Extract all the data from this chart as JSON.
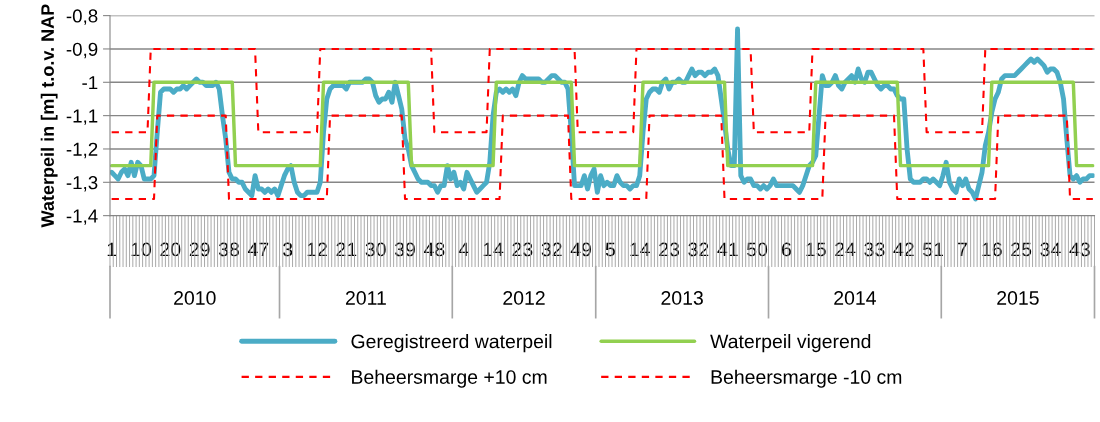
{
  "chart_data": {
    "type": "line",
    "ylabel": "Waterpeil in [m] t.o.v. NAP",
    "categories": [
      "1",
      null,
      null,
      null,
      null,
      null,
      null,
      null,
      null,
      "10",
      null,
      null,
      null,
      null,
      null,
      null,
      null,
      null,
      "20",
      null,
      null,
      null,
      null,
      null,
      null,
      null,
      null,
      "29",
      null,
      null,
      null,
      null,
      null,
      null,
      null,
      null,
      "38",
      null,
      null,
      null,
      null,
      null,
      null,
      null,
      null,
      "47",
      null,
      null,
      null,
      null,
      null,
      null,
      null,
      null,
      "3",
      null,
      null,
      null,
      null,
      null,
      null,
      null,
      null,
      "12",
      null,
      null,
      null,
      null,
      null,
      null,
      null,
      null,
      "21",
      null,
      null,
      null,
      null,
      null,
      null,
      null,
      null,
      "30",
      null,
      null,
      null,
      null,
      null,
      null,
      null,
      null,
      "39",
      null,
      null,
      null,
      null,
      null,
      null,
      null,
      null,
      "48",
      null,
      null,
      null,
      null,
      null,
      null,
      null,
      null,
      "4",
      null,
      null,
      null,
      null,
      null,
      null,
      null,
      null,
      "14",
      null,
      null,
      null,
      null,
      null,
      null,
      null,
      null,
      "23",
      null,
      null,
      null,
      null,
      null,
      null,
      null,
      null,
      "32",
      null,
      null,
      null,
      null,
      null,
      null,
      null,
      null,
      "49",
      null,
      null,
      null,
      null,
      null,
      null,
      null,
      null,
      "5",
      null,
      null,
      null,
      null,
      null,
      null,
      null,
      null,
      "14",
      null,
      null,
      null,
      null,
      null,
      null,
      null,
      null,
      "23",
      null,
      null,
      null,
      null,
      null,
      null,
      null,
      null,
      "32",
      null,
      null,
      null,
      null,
      null,
      null,
      null,
      null,
      "41",
      null,
      null,
      null,
      null,
      null,
      null,
      null,
      null,
      "50",
      null,
      null,
      null,
      null,
      null,
      null,
      null,
      null,
      "6",
      null,
      null,
      null,
      null,
      null,
      null,
      null,
      null,
      "15",
      null,
      null,
      null,
      null,
      null,
      null,
      null,
      null,
      "24",
      null,
      null,
      null,
      null,
      null,
      null,
      null,
      null,
      "33",
      null,
      null,
      null,
      null,
      null,
      null,
      null,
      null,
      "42",
      null,
      null,
      null,
      null,
      null,
      null,
      null,
      null,
      "51",
      null,
      null,
      null,
      null,
      null,
      null,
      null,
      null,
      "7",
      null,
      null,
      null,
      null,
      null,
      null,
      null,
      null,
      "16",
      null,
      null,
      null,
      null,
      null,
      null,
      null,
      null,
      "25",
      null,
      null,
      null,
      null,
      null,
      null,
      null,
      null,
      "34",
      null,
      null,
      null,
      null,
      null,
      null,
      null,
      null,
      "43",
      null,
      null,
      null,
      null
    ],
    "annotations": [
      "2010",
      "2011",
      "2012",
      "2013",
      "2014",
      "2015"
    ],
    "ylim": [
      -1.4,
      -0.8
    ],
    "yticks": [
      {
        "value": -1.4,
        "label": "-1,4"
      },
      {
        "value": -1.3,
        "label": "-1,3"
      },
      {
        "value": -1.2,
        "label": "-1,2"
      },
      {
        "value": -1.1,
        "label": "-1,1"
      },
      {
        "value": -1,
        "label": "-1"
      },
      {
        "value": -0.9,
        "label": "-0,9"
      },
      {
        "value": -0.8,
        "label": "-0,8"
      }
    ],
    "grid": "y",
    "legend": "bottom",
    "series": [
      {
        "name": "Geregistreerd waterpeil",
        "color": "#4bacc6",
        "line_style": "solid",
        "values": [
          -1.27,
          -1.28,
          -1.29,
          -1.27,
          -1.26,
          -1.28,
          -1.24,
          -1.28,
          -1.24,
          -1.25,
          -1.29,
          -1.29,
          -1.29,
          -1.28,
          -1.15,
          -1.03,
          -1.02,
          -1.02,
          -1.02,
          -1.03,
          -1.02,
          -1.02,
          -1.01,
          -1.02,
          -1.01,
          -1.0,
          -0.99,
          -1.0,
          -1.0,
          -1.01,
          -1.01,
          -1.01,
          -1.0,
          -1.02,
          -1.1,
          -1.17,
          -1.27,
          -1.29,
          -1.29,
          -1.3,
          -1.3,
          -1.32,
          -1.33,
          -1.34,
          -1.28,
          -1.32,
          -1.32,
          -1.33,
          -1.32,
          -1.33,
          -1.32,
          -1.34,
          -1.31,
          -1.28,
          -1.26,
          -1.25,
          -1.3,
          -1.33,
          -1.34,
          -1.34,
          -1.33,
          -1.33,
          -1.33,
          -1.33,
          -1.3,
          -1.15,
          -1.05,
          -1.02,
          -1.01,
          -1.01,
          -1.01,
          -1.01,
          -1.02,
          -1.0,
          -1.0,
          -1.0,
          -1.0,
          -1.0,
          -0.99,
          -0.99,
          -1.0,
          -1.04,
          -1.06,
          -1.05,
          -1.05,
          -1.03,
          -1.06,
          -1.0,
          -1.04,
          -1.08,
          -1.17,
          -1.2,
          -1.25,
          -1.27,
          -1.29,
          -1.3,
          -1.3,
          -1.3,
          -1.31,
          -1.31,
          -1.33,
          -1.31,
          -1.31,
          -1.25,
          -1.29,
          -1.27,
          -1.31,
          -1.3,
          -1.32,
          -1.27,
          -1.29,
          -1.31,
          -1.33,
          -1.32,
          -1.31,
          -1.3,
          -1.24,
          -1.1,
          -1.03,
          -1.02,
          -1.03,
          -1.02,
          -1.03,
          -1.02,
          -1.04,
          -1.0,
          -0.98,
          -0.99,
          -0.99,
          -0.99,
          -0.99,
          -0.99,
          -1.0,
          -1.0,
          -0.99,
          -0.98,
          -0.98,
          -0.99,
          -1.0,
          -1.0,
          -1.02,
          -1.15,
          -1.31,
          -1.31,
          -1.31,
          -1.28,
          -1.32,
          -1.28,
          -1.26,
          -1.33,
          -1.28,
          -1.31,
          -1.3,
          -1.31,
          -1.31,
          -1.28,
          -1.3,
          -1.31,
          -1.31,
          -1.32,
          -1.31,
          -1.31,
          -1.28,
          -1.15,
          -1.05,
          -1.03,
          -1.02,
          -1.02,
          -1.03,
          -1.0,
          -0.99,
          -1.02,
          -1.0,
          -1.0,
          -0.99,
          -1.0,
          -1.0,
          -0.98,
          -0.96,
          -0.98,
          -0.97,
          -0.97,
          -0.98,
          -0.97,
          -0.97,
          -0.96,
          -0.98,
          -1.05,
          -1.12,
          -1.2,
          -1.25,
          -1.25,
          -0.84,
          -1.28,
          -1.3,
          -1.29,
          -1.29,
          -1.31,
          -1.31,
          -1.32,
          -1.31,
          -1.32,
          -1.31,
          -1.29,
          -1.31,
          -1.31,
          -1.31,
          -1.31,
          -1.31,
          -1.31,
          -1.32,
          -1.33,
          -1.31,
          -1.28,
          -1.25,
          -1.24,
          -1.22,
          -1.1,
          -0.98,
          -1.01,
          -1.01,
          -1.0,
          -0.98,
          -1.01,
          -1.02,
          -1.0,
          -0.99,
          -0.98,
          -1.0,
          -0.96,
          -0.99,
          -1.0,
          -0.97,
          -0.97,
          -0.99,
          -1.01,
          -1.02,
          -1.01,
          -1.01,
          -1.02,
          -1.02,
          -1.04,
          -1.05,
          -1.05,
          -1.2,
          -1.29,
          -1.3,
          -1.3,
          -1.3,
          -1.29,
          -1.29,
          -1.3,
          -1.29,
          -1.3,
          -1.31,
          -1.28,
          -1.24,
          -1.3,
          -1.32,
          -1.33,
          -1.29,
          -1.31,
          -1.29,
          -1.32,
          -1.33,
          -1.35,
          -1.31,
          -1.27,
          -1.19,
          -1.15,
          -1.09,
          -1.05,
          -1.03,
          -0.99,
          -0.98,
          -0.98,
          -0.98,
          -0.98,
          -0.97,
          -0.96,
          -0.95,
          -0.94,
          -0.93,
          -0.94,
          -0.93,
          -0.94,
          -0.95,
          -0.97,
          -0.96,
          -0.96,
          -0.97,
          -1.0,
          -1.05,
          -1.17,
          -1.28,
          -1.29,
          -1.28,
          -1.3,
          -1.29,
          -1.29,
          -1.28,
          -1.28
        ]
      },
      {
        "name": "Waterpeil vigerend",
        "color": "#92d050",
        "line_style": "solid",
        "values": [
          -1.25,
          -1.25,
          -1.25,
          -1.25,
          -1.25,
          -1.25,
          -1.25,
          -1.25,
          -1.25,
          -1.25,
          -1.25,
          -1.25,
          -1.25,
          -1,
          -1,
          -1,
          -1,
          -1,
          -1,
          -1,
          -1,
          -1,
          -1,
          -1,
          -1,
          -1,
          -1,
          -1,
          -1,
          -1,
          -1,
          -1,
          -1,
          -1,
          -1,
          -1,
          -1,
          -1,
          -1.25,
          -1.25,
          -1.25,
          -1.25,
          -1.25,
          -1.25,
          -1.25,
          -1.25,
          -1.25,
          -1.25,
          -1.25,
          -1.25,
          -1.25,
          -1.25,
          -1.25,
          -1.25,
          -1.25,
          -1.25,
          -1.25,
          -1.25,
          -1.25,
          -1.25,
          -1.25,
          -1.25,
          -1.25,
          -1.25,
          -1.25,
          -1,
          -1,
          -1,
          -1,
          -1,
          -1,
          -1,
          -1,
          -1,
          -1,
          -1,
          -1,
          -1,
          -1,
          -1,
          -1,
          -1,
          -1,
          -1,
          -1,
          -1,
          -1,
          -1,
          -1,
          -1,
          -1,
          -1,
          -1.25,
          -1.25,
          -1.25,
          -1.25,
          -1.25,
          -1.25,
          -1.25,
          -1.25,
          -1.25,
          -1.25,
          -1.25,
          -1.25,
          -1.25,
          -1.25,
          -1.25,
          -1.25,
          -1.25,
          -1.25,
          -1.25,
          -1.25,
          -1.25,
          -1.25,
          -1.25,
          -1.25,
          -1.25,
          -1.25,
          -1,
          -1,
          -1,
          -1,
          -1,
          -1,
          -1,
          -1,
          -1,
          -1,
          -1,
          -1,
          -1,
          -1,
          -1,
          -1,
          -1,
          -1,
          -1,
          -1,
          -1,
          -1,
          -1,
          -1,
          -1.25,
          -1.25,
          -1.25,
          -1.25,
          -1.25,
          -1.25,
          -1.25,
          -1.25,
          -1.25,
          -1.25,
          -1.25,
          -1.25,
          -1.25,
          -1.25,
          -1.25,
          -1.25,
          -1.25,
          -1.25,
          -1.25,
          -1.25,
          -1.25,
          -1,
          -1,
          -1,
          -1,
          -1,
          -1,
          -1,
          -1,
          -1,
          -1,
          -1,
          -1,
          -1,
          -1,
          -1,
          -1,
          -1,
          -1,
          -1,
          -1,
          -1,
          -1,
          -1,
          -1,
          -1,
          -1,
          -1.25,
          -1.25,
          -1.25,
          -1.25,
          -1.25,
          -1.25,
          -1.25,
          -1.25,
          -1.25,
          -1.25,
          -1.25,
          -1.25,
          -1.25,
          -1.25,
          -1.25,
          -1.25,
          -1.25,
          -1.25,
          -1.25,
          -1.25,
          -1.25,
          -1.25,
          -1.25,
          -1.25,
          -1.25,
          -1.25,
          -1.25,
          -1,
          -1,
          -1,
          -1,
          -1,
          -1,
          -1,
          -1,
          -1,
          -1,
          -1,
          -1,
          -1,
          -1,
          -1,
          -1,
          -1,
          -1,
          -1,
          -1,
          -1,
          -1,
          -1,
          -1,
          -1,
          -1,
          -1.25,
          -1.25,
          -1.25,
          -1.25,
          -1.25,
          -1.25,
          -1.25,
          -1.25,
          -1.25,
          -1.25,
          -1.25,
          -1.25,
          -1.25,
          -1.25,
          -1.25,
          -1.25,
          -1.25,
          -1.25,
          -1.25,
          -1.25,
          -1.25,
          -1.25,
          -1.25,
          -1.25,
          -1.25,
          -1.25,
          -1.25,
          -1.25,
          -1,
          -1,
          -1,
          -1,
          -1,
          -1,
          -1,
          -1,
          -1,
          -1,
          -1,
          -1,
          -1,
          -1,
          -1,
          -1,
          -1,
          -1,
          -1,
          -1,
          -1,
          -1,
          -1,
          -1,
          -1,
          -1,
          -1.25,
          -1.25,
          -1.25,
          -1.25,
          -1.25,
          -1.25
        ]
      },
      {
        "name": "Beheersmarge +10 cm",
        "color": "#ff0000",
        "line_style": "dashed",
        "values": [
          -1.15,
          -1.15,
          -1.15,
          -1.15,
          -1.15,
          -1.15,
          -1.15,
          -1.15,
          -1.15,
          -1.15,
          -1.15,
          -1.15,
          -0.9,
          -0.9,
          -0.9,
          -0.9,
          -0.9,
          -0.9,
          -0.9,
          -0.9,
          -0.9,
          -0.9,
          -0.9,
          -0.9,
          -0.9,
          -0.9,
          -0.9,
          -0.9,
          -0.9,
          -0.9,
          -0.9,
          -0.9,
          -0.9,
          -0.9,
          -0.9,
          -0.9,
          -0.9,
          -0.9,
          -0.9,
          -0.9,
          -0.9,
          -0.9,
          -0.9,
          -0.9,
          -0.9,
          -1.15,
          -1.15,
          -1.15,
          -1.15,
          -1.15,
          -1.15,
          -1.15,
          -1.15,
          -1.15,
          -1.15,
          -1.15,
          -1.15,
          -1.15,
          -1.15,
          -1.15,
          -1.15,
          -1.15,
          -1.15,
          -1.15,
          -0.9,
          -0.9,
          -0.9,
          -0.9,
          -0.9,
          -0.9,
          -0.9,
          -0.9,
          -0.9,
          -0.9,
          -0.9,
          -0.9,
          -0.9,
          -0.9,
          -0.9,
          -0.9,
          -0.9,
          -0.9,
          -0.9,
          -0.9,
          -0.9,
          -0.9,
          -0.9,
          -0.9,
          -0.9,
          -0.9,
          -0.9,
          -0.9,
          -0.9,
          -0.9,
          -0.9,
          -0.9,
          -0.9,
          -0.9,
          -0.9,
          -1.15,
          -1.15,
          -1.15,
          -1.15,
          -1.15,
          -1.15,
          -1.15,
          -1.15,
          -1.15,
          -1.15,
          -1.15,
          -1.15,
          -1.15,
          -1.15,
          -1.15,
          -1.15,
          -1.15,
          -0.9,
          -0.9,
          -0.9,
          -0.9,
          -0.9,
          -0.9,
          -0.9,
          -0.9,
          -0.9,
          -0.9,
          -0.9,
          -0.9,
          -0.9,
          -0.9,
          -0.9,
          -0.9,
          -0.9,
          -0.9,
          -0.9,
          -0.9,
          -0.9,
          -0.9,
          -0.9,
          -0.9,
          -0.9,
          -0.9,
          -0.9,
          -1.15,
          -1.15,
          -1.15,
          -1.15,
          -1.15,
          -1.15,
          -1.15,
          -1.15,
          -1.15,
          -1.15,
          -1.15,
          -1.15,
          -1.15,
          -1.15,
          -1.15,
          -1.15,
          -1.15,
          -1.15,
          -0.9,
          -0.9,
          -0.9,
          -0.9,
          -0.9,
          -0.9,
          -0.9,
          -0.9,
          -0.9,
          -0.9,
          -0.9,
          -0.9,
          -0.9,
          -0.9,
          -0.9,
          -0.9,
          -0.9,
          -0.9,
          -0.9,
          -0.9,
          -0.9,
          -0.9,
          -0.9,
          -0.9,
          -0.9,
          -0.9,
          -0.9,
          -0.9,
          -0.9,
          -0.9,
          -0.9,
          -0.9,
          -0.9,
          -0.9,
          -0.9,
          -0.9,
          -1.15,
          -1.15,
          -1.15,
          -1.15,
          -1.15,
          -1.15,
          -1.15,
          -1.15,
          -1.15,
          -1.15,
          -1.15,
          -1.15,
          -1.15,
          -1.15,
          -1.15,
          -1.15,
          -1.15,
          -1.15,
          -0.9,
          -0.9,
          -0.9,
          -0.9,
          -0.9,
          -0.9,
          -0.9,
          -0.9,
          -0.9,
          -0.9,
          -0.9,
          -0.9,
          -0.9,
          -0.9,
          -0.9,
          -0.9,
          -0.9,
          -0.9,
          -0.9,
          -0.9,
          -0.9,
          -0.9,
          -0.9,
          -0.9,
          -0.9,
          -0.9,
          -0.9,
          -0.9,
          -0.9,
          -0.9,
          -0.9,
          -0.9,
          -0.9,
          -0.9,
          -0.9,
          -1.15,
          -1.15,
          -1.15,
          -1.15,
          -1.15,
          -1.15,
          -1.15,
          -1.15,
          -1.15,
          -1.15,
          -1.15,
          -1.15,
          -1.15,
          -1.15,
          -1.15,
          -1.15,
          -1.15,
          -1.15,
          -0.9,
          -0.9,
          -0.9,
          -0.9,
          -0.9,
          -0.9,
          -0.9,
          -0.9,
          -0.9,
          -0.9,
          -0.9,
          -0.9,
          -0.9,
          -0.9,
          -0.9,
          -0.9,
          -0.9,
          -0.9,
          -0.9,
          -0.9,
          -0.9,
          -0.9,
          -0.9,
          -0.9,
          -0.9,
          -0.9,
          -0.9,
          -0.9,
          -0.9,
          -0.9,
          -0.9,
          -0.9,
          -0.9,
          -0.9
        ]
      },
      {
        "name": "Beheersmarge -10 cm",
        "color": "#ff0000",
        "line_style": "dashed",
        "values": [
          -1.35,
          -1.35,
          -1.35,
          -1.35,
          -1.35,
          -1.35,
          -1.35,
          -1.35,
          -1.35,
          -1.35,
          -1.35,
          -1.35,
          -1.35,
          -1.35,
          -1.1,
          -1.1,
          -1.1,
          -1.1,
          -1.1,
          -1.1,
          -1.1,
          -1.1,
          -1.1,
          -1.1,
          -1.1,
          -1.1,
          -1.1,
          -1.1,
          -1.1,
          -1.1,
          -1.1,
          -1.1,
          -1.1,
          -1.1,
          -1.1,
          -1.1,
          -1.35,
          -1.35,
          -1.35,
          -1.35,
          -1.35,
          -1.35,
          -1.35,
          -1.35,
          -1.35,
          -1.35,
          -1.35,
          -1.35,
          -1.35,
          -1.35,
          -1.35,
          -1.35,
          -1.35,
          -1.35,
          -1.35,
          -1.35,
          -1.35,
          -1.35,
          -1.35,
          -1.35,
          -1.35,
          -1.35,
          -1.35,
          -1.35,
          -1.35,
          -1.35,
          -1.35,
          -1.1,
          -1.1,
          -1.1,
          -1.1,
          -1.1,
          -1.1,
          -1.1,
          -1.1,
          -1.1,
          -1.1,
          -1.1,
          -1.1,
          -1.1,
          -1.1,
          -1.1,
          -1.1,
          -1.1,
          -1.1,
          -1.1,
          -1.1,
          -1.1,
          -1.1,
          -1.1,
          -1.35,
          -1.35,
          -1.35,
          -1.35,
          -1.35,
          -1.35,
          -1.35,
          -1.35,
          -1.35,
          -1.35,
          -1.35,
          -1.35,
          -1.35,
          -1.35,
          -1.35,
          -1.35,
          -1.35,
          -1.35,
          -1.35,
          -1.35,
          -1.35,
          -1.35,
          -1.35,
          -1.35,
          -1.35,
          -1.35,
          -1.35,
          -1.35,
          -1.35,
          -1.35,
          -1.1,
          -1.1,
          -1.1,
          -1.1,
          -1.1,
          -1.1,
          -1.1,
          -1.1,
          -1.1,
          -1.1,
          -1.1,
          -1.1,
          -1.1,
          -1.1,
          -1.1,
          -1.1,
          -1.1,
          -1.1,
          -1.1,
          -1.1,
          -1.1,
          -1.35,
          -1.35,
          -1.35,
          -1.35,
          -1.35,
          -1.35,
          -1.35,
          -1.35,
          -1.35,
          -1.35,
          -1.35,
          -1.35,
          -1.35,
          -1.35,
          -1.35,
          -1.35,
          -1.35,
          -1.35,
          -1.35,
          -1.35,
          -1.35,
          -1.35,
          -1.35,
          -1.35,
          -1.1,
          -1.1,
          -1.1,
          -1.1,
          -1.1,
          -1.1,
          -1.1,
          -1.1,
          -1.1,
          -1.1,
          -1.1,
          -1.1,
          -1.1,
          -1.1,
          -1.1,
          -1.1,
          -1.1,
          -1.1,
          -1.1,
          -1.1,
          -1.1,
          -1.1,
          -1.1,
          -1.35,
          -1.35,
          -1.35,
          -1.35,
          -1.35,
          -1.35,
          -1.35,
          -1.35,
          -1.35,
          -1.35,
          -1.35,
          -1.35,
          -1.35,
          -1.35,
          -1.35,
          -1.35,
          -1.35,
          -1.35,
          -1.35,
          -1.35,
          -1.35,
          -1.35,
          -1.35,
          -1.35,
          -1.35,
          -1.35,
          -1.35,
          -1.35,
          -1.35,
          -1.35,
          -1.35,
          -1.1,
          -1.1,
          -1.1,
          -1.1,
          -1.1,
          -1.1,
          -1.1,
          -1.1,
          -1.1,
          -1.1,
          -1.1,
          -1.1,
          -1.1,
          -1.1,
          -1.1,
          -1.1,
          -1.1,
          -1.1,
          -1.1,
          -1.1,
          -1.1,
          -1.1,
          -1.35,
          -1.35,
          -1.35,
          -1.35,
          -1.35,
          -1.35,
          -1.35,
          -1.35,
          -1.35,
          -1.35,
          -1.35,
          -1.35,
          -1.35,
          -1.35,
          -1.35,
          -1.35,
          -1.35,
          -1.35,
          -1.35,
          -1.35,
          -1.35,
          -1.35,
          -1.35,
          -1.35,
          -1.35,
          -1.35,
          -1.35,
          -1.35,
          -1.35,
          -1.35,
          -1.35,
          -1.1,
          -1.1,
          -1.1,
          -1.1,
          -1.1,
          -1.1,
          -1.1,
          -1.1,
          -1.1,
          -1.1,
          -1.1,
          -1.1,
          -1.1,
          -1.1,
          -1.1,
          -1.1,
          -1.1,
          -1.1,
          -1.1,
          -1.1,
          -1.1,
          -1.1,
          -1.35,
          -1.35,
          -1.35,
          -1.35,
          -1.35,
          -1.35,
          -1.35,
          -1.35
        ]
      }
    ]
  }
}
